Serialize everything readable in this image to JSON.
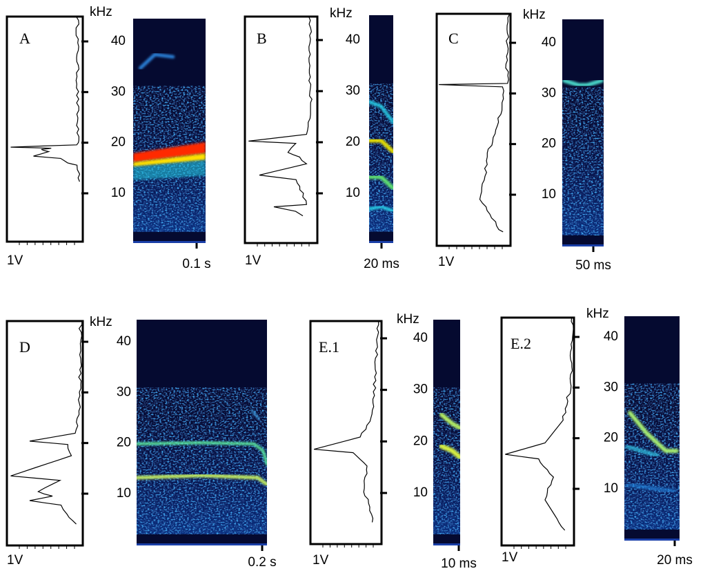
{
  "panels": [
    {
      "label": "A",
      "freq_unit": "kHz",
      "yticks": [
        10,
        20,
        30,
        40
      ],
      "amplitude_label": "1V",
      "time_label": "0.1 s"
    },
    {
      "label": "B",
      "freq_unit": "kHz",
      "yticks": [
        10,
        20,
        30,
        40
      ],
      "amplitude_label": "1V",
      "time_label": "20 ms"
    },
    {
      "label": "C",
      "freq_unit": "kHz",
      "yticks": [
        10,
        20,
        30,
        40
      ],
      "amplitude_label": "1V",
      "time_label": "50 ms"
    },
    {
      "label": "D",
      "freq_unit": "kHz",
      "yticks": [
        10,
        20,
        30,
        40
      ],
      "amplitude_label": "1V",
      "time_label": "0.2 s"
    },
    {
      "label": "E.1",
      "freq_unit": "kHz",
      "yticks": [
        10,
        20,
        30,
        40
      ],
      "amplitude_label": "1V",
      "time_label": "10 ms"
    },
    {
      "label": "E.2",
      "freq_unit": "kHz",
      "yticks": [
        10,
        20,
        30,
        40
      ],
      "amplitude_label": "1V",
      "time_label": "20 ms"
    }
  ]
}
